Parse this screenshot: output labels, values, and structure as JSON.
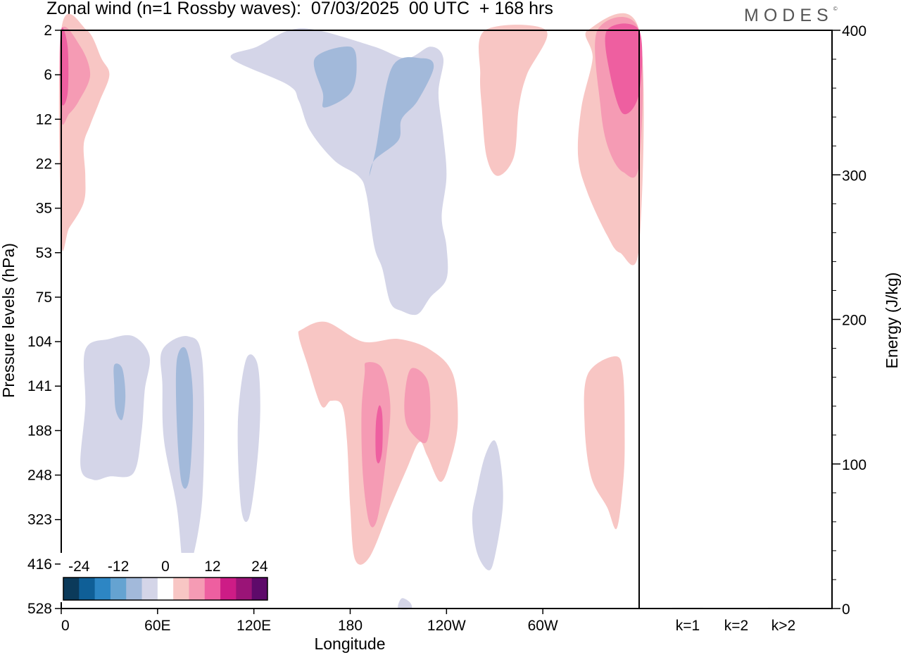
{
  "header": {
    "title": "Zonal wind (n=1 Rossby waves):  07/03/2025  00 UTC  + 168 hrs",
    "logo": "MODES",
    "logo_mark": "©"
  },
  "chart_data": [
    {
      "type": "heatmap",
      "title": "Zonal wind (n=1 Rossby waves):  07/03/2025  00 UTC  + 168 hrs",
      "xlabel": "Longitude",
      "ylabel": "Pressure levels (hPa)",
      "x_ticks": [
        "0",
        "60E",
        "120E",
        "180",
        "120W",
        "60W"
      ],
      "x_tick_degrees": [
        0,
        60,
        120,
        180,
        240,
        300
      ],
      "xlim": [
        0,
        360
      ],
      "y_ticks": [
        "2",
        "6",
        "12",
        "22",
        "35",
        "53",
        "75",
        "104",
        "141",
        "188",
        "248",
        "323",
        "416",
        "528"
      ],
      "y_scale": "pressure levels, top 2 hPa to bottom 528 hPa",
      "colorbar": {
        "labels": [
          "-24",
          "-12",
          "0",
          "12",
          "24"
        ],
        "colors": [
          "#0b3a5a",
          "#0f5f97",
          "#2d86c4",
          "#65a3d1",
          "#a2b9da",
          "#d4d5e8",
          "#ffffff",
          "#f8c6c4",
          "#f59bb4",
          "#ee5fa0",
          "#cd1c86",
          "#9a1477",
          "#5e0a6a"
        ]
      },
      "contours": [
        {
          "level": "4..8",
          "sign": "positive",
          "color": "#f8c6c4",
          "points": [
            [
              0,
              2
            ],
            [
              16,
              2
            ],
            [
              25,
              4
            ],
            [
              30,
              6
            ],
            [
              24,
              9
            ],
            [
              18,
              13
            ],
            [
              14,
              17
            ],
            [
              15,
              25
            ],
            [
              14,
              33
            ],
            [
              5,
              42
            ],
            [
              0,
              46
            ]
          ]
        },
        {
          "level": "8..12",
          "sign": "positive",
          "color": "#f59bb4",
          "points": [
            [
              0,
              2
            ],
            [
              12,
              3
            ],
            [
              18,
              6
            ],
            [
              11,
              9
            ],
            [
              5,
              11
            ],
            [
              0,
              12
            ]
          ]
        },
        {
          "level": ">12",
          "sign": "positive",
          "color": "#ee5fa0",
          "points": [
            [
              0,
              2
            ],
            [
              4,
              3
            ],
            [
              4,
              8
            ],
            [
              0,
              9
            ]
          ]
        },
        {
          "level": "-8..-4",
          "sign": "negative",
          "color": "#d4d5e8",
          "points": [
            [
              142,
              2
            ],
            [
              122,
              3
            ],
            [
              106,
              4
            ],
            [
              141,
              7
            ],
            [
              148,
              9
            ],
            [
              155,
              14
            ],
            [
              170,
              21
            ],
            [
              185,
              25
            ],
            [
              190,
              30
            ],
            [
              195,
              50
            ],
            [
              200,
              60
            ],
            [
              205,
              78
            ],
            [
              212,
              83
            ],
            [
              222,
              85
            ],
            [
              230,
              75
            ],
            [
              240,
              65
            ],
            [
              240,
              50
            ],
            [
              237,
              38
            ],
            [
              240,
              25
            ],
            [
              238,
              15
            ],
            [
              235,
              8
            ],
            [
              238,
              4
            ],
            [
              230,
              3
            ],
            [
              215,
              4
            ],
            [
              195,
              3
            ],
            [
              160,
              2
            ]
          ]
        },
        {
          "level": "-12..-8",
          "sign": "negative",
          "color": "#a2b9da",
          "points": [
            [
              158,
              4
            ],
            [
              180,
              3
            ],
            [
              184,
              5
            ],
            [
              180,
              8
            ],
            [
              164,
              10
            ],
            [
              163,
              8
            ]
          ]
        },
        {
          "level": "-12..-8",
          "sign": "negative",
          "color": "#a2b9da",
          "points": [
            [
              206,
              5
            ],
            [
              225,
              4
            ],
            [
              232,
              5
            ],
            [
              222,
              9
            ],
            [
              212,
              12
            ],
            [
              210,
              16
            ],
            [
              195,
              21
            ],
            [
              192,
              25
            ],
            [
              196,
              18
            ]
          ]
        },
        {
          "level": "4..8",
          "sign": "positive",
          "color": "#f8c6c4",
          "points": [
            [
              264,
              2
            ],
            [
              302,
              2
            ],
            [
              290,
              6
            ],
            [
              285,
              10
            ],
            [
              282,
              20
            ],
            [
              272,
              25
            ],
            [
              265,
              20
            ],
            [
              262,
              10
            ],
            [
              261,
              6
            ]
          ]
        },
        {
          "level": "4..8",
          "sign": "positive",
          "color": "#f8c6c4",
          "points": [
            [
              328,
              2
            ],
            [
              360,
              2
            ],
            [
              360,
              50
            ],
            [
              348,
              53
            ],
            [
              340,
              45
            ],
            [
              328,
              30
            ],
            [
              322,
              20
            ],
            [
              324,
              10
            ],
            [
              331,
              4
            ]
          ]
        },
        {
          "level": "8..12",
          "sign": "positive",
          "color": "#f59bb4",
          "points": [
            [
              334,
              2
            ],
            [
              360,
              2
            ],
            [
              360,
              22
            ],
            [
              350,
              24
            ],
            [
              341,
              18
            ],
            [
              336,
              10
            ]
          ]
        },
        {
          "level": ">12",
          "sign": "positive",
          "color": "#ee5fa0",
          "points": [
            [
              340,
              2
            ],
            [
              360,
              2
            ],
            [
              360,
              8
            ],
            [
              350,
              11
            ],
            [
              342,
              6
            ]
          ]
        },
        {
          "level": "-8..-4",
          "sign": "negative",
          "color": "#d4d5e8",
          "points": [
            [
              15,
              110
            ],
            [
              30,
              102
            ],
            [
              45,
              100
            ],
            [
              55,
              115
            ],
            [
              52,
              145
            ],
            [
              50,
              190
            ],
            [
              45,
              245
            ],
            [
              30,
              250
            ],
            [
              20,
              255
            ],
            [
              12,
              235
            ],
            [
              15,
              160
            ]
          ]
        },
        {
          "level": "-12..-8",
          "sign": "negative",
          "color": "#a2b9da",
          "points": [
            [
              33,
              122
            ],
            [
              38,
              125
            ],
            [
              40,
              150
            ],
            [
              38,
              175
            ],
            [
              34,
              165
            ],
            [
              33,
              140
            ]
          ]
        },
        {
          "level": "-8..-4",
          "sign": "negative",
          "color": "#d4d5e8",
          "points": [
            [
              63,
              110
            ],
            [
              79,
              100
            ],
            [
              88,
              120
            ],
            [
              88,
              280
            ],
            [
              80,
              430
            ],
            [
              76,
              430
            ],
            [
              72,
              300
            ],
            [
              64,
              200
            ],
            [
              63,
              140
            ]
          ]
        },
        {
          "level": "-12..-8",
          "sign": "negative",
          "color": "#a2b9da",
          "points": [
            [
              72,
              118
            ],
            [
              78,
              110
            ],
            [
              82,
              150
            ],
            [
              80,
              250
            ],
            [
              75,
              260
            ],
            [
              72,
              180
            ]
          ]
        },
        {
          "level": "-8..-4",
          "sign": "negative",
          "color": "#d4d5e8",
          "points": [
            [
              115,
              118
            ],
            [
              122,
              120
            ],
            [
              124,
              160
            ],
            [
              122,
              230
            ],
            [
              117,
              320
            ],
            [
              112,
              300
            ],
            [
              110,
              180
            ]
          ]
        },
        {
          "level": "4..8",
          "sign": "positive",
          "color": "#f8c6c4",
          "points": [
            [
              150,
              95
            ],
            [
              165,
              90
            ],
            [
              188,
              104
            ],
            [
              210,
              102
            ],
            [
              230,
              110
            ],
            [
              244,
              130
            ],
            [
              247,
              180
            ],
            [
              242,
              230
            ],
            [
              236,
              258
            ],
            [
              228,
              220
            ],
            [
              223,
              202
            ],
            [
              215,
              240
            ],
            [
              205,
              300
            ],
            [
              192,
              400
            ],
            [
              183,
              405
            ],
            [
              180,
              300
            ],
            [
              178,
              200
            ],
            [
              175,
              160
            ],
            [
              168,
              155
            ],
            [
              162,
              160
            ],
            [
              153,
              120
            ],
            [
              148,
              100
            ]
          ]
        },
        {
          "level": "8..12",
          "sign": "positive",
          "color": "#f59bb4",
          "points": [
            [
              190,
              120
            ],
            [
              200,
              125
            ],
            [
              205,
              160
            ],
            [
              202,
              230
            ],
            [
              197,
              320
            ],
            [
              192,
              330
            ],
            [
              188,
              250
            ],
            [
              187,
              170
            ],
            [
              189,
              130
            ]
          ]
        },
        {
          "level": "8..12",
          "sign": "positive",
          "color": "#f59bb4",
          "points": [
            [
              218,
              125
            ],
            [
              228,
              135
            ],
            [
              230,
              170
            ],
            [
              228,
              200
            ],
            [
              223,
              200
            ],
            [
              215,
              180
            ],
            [
              214,
              150
            ]
          ]
        },
        {
          "level": ">12",
          "sign": "positive",
          "color": "#ee5fa0",
          "points": [
            [
              198,
              160
            ],
            [
              200,
              170
            ],
            [
              200,
              210
            ],
            [
              198,
              230
            ],
            [
              196,
              220
            ],
            [
              196,
              180
            ]
          ]
        },
        {
          "level": "-8..-4",
          "sign": "negative",
          "color": "#d4d5e8",
          "points": [
            [
              264,
              220
            ],
            [
              270,
              200
            ],
            [
              274,
              235
            ],
            [
              275,
              300
            ],
            [
              270,
              400
            ],
            [
              266,
              430
            ],
            [
              259,
              390
            ],
            [
              256,
              320
            ],
            [
              259,
              270
            ]
          ]
        },
        {
          "level": "-8..-4",
          "sign": "negative",
          "color": "#d4d5e8",
          "points": [
            [
              212,
              500
            ],
            [
              217,
              510
            ],
            [
              218,
              528
            ],
            [
              210,
              528
            ]
          ]
        },
        {
          "level": "4..8",
          "sign": "positive",
          "color": "#f8c6c4",
          "points": [
            [
              328,
              130
            ],
            [
              345,
              115
            ],
            [
              350,
              130
            ],
            [
              351,
              200
            ],
            [
              350,
              260
            ],
            [
              346,
              340
            ],
            [
              340,
              300
            ],
            [
              330,
              250
            ],
            [
              326,
              180
            ]
          ]
        }
      ]
    },
    {
      "type": "bar",
      "categories": [
        "k=1",
        "k=2",
        "k>2"
      ],
      "values": [
        0.5,
        0.3,
        0.5
      ],
      "ylabel": "Energy (J/kg)",
      "ylim": [
        0,
        400
      ],
      "y_ticks": [
        "0",
        "100",
        "200",
        "300",
        "400"
      ]
    }
  ]
}
